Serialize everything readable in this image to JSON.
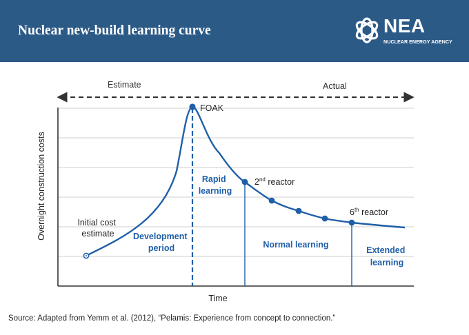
{
  "header": {
    "title": "Nuclear new-build learning curve",
    "logo_text": "NEA",
    "logo_subtext": "NUCLEAR ENERGY AGENCY"
  },
  "colors": {
    "header_bg": "#2b5a87",
    "curve": "#1f5fa8",
    "axis": "#333333",
    "grid": "#bfbfbf"
  },
  "chart_data": {
    "type": "line",
    "xlabel": "Time",
    "ylabel": "Overnight construction costs",
    "grid": true,
    "banner": {
      "left": "Estimate",
      "right": "Actual"
    },
    "points": [
      {
        "name": "initial",
        "label": "Initial cost estimate",
        "marker": "open"
      },
      {
        "name": "foak",
        "label": "FOAK",
        "marker": "filled"
      },
      {
        "name": "second-reactor",
        "label_base": "2",
        "label_sup": "nd",
        "label_rest": " reactor",
        "marker": "filled"
      },
      {
        "name": "third-reactor",
        "marker": "filled"
      },
      {
        "name": "fourth-reactor",
        "marker": "filled"
      },
      {
        "name": "fifth-reactor",
        "marker": "filled"
      },
      {
        "name": "sixth-reactor",
        "label_base": "6",
        "label_sup": "th",
        "label_rest": " reactor",
        "marker": "filled"
      }
    ],
    "phases": [
      {
        "name": "development",
        "lines": [
          "Development",
          "period"
        ]
      },
      {
        "name": "rapid",
        "lines": [
          "Rapid",
          "learning"
        ]
      },
      {
        "name": "normal",
        "lines": [
          "Normal learning"
        ]
      },
      {
        "name": "extended",
        "lines": [
          "Extended",
          "learning"
        ]
      }
    ]
  },
  "source": "Source: Adapted from Yemm et al. (2012), “Pelamis: Experience from concept to connection.”"
}
